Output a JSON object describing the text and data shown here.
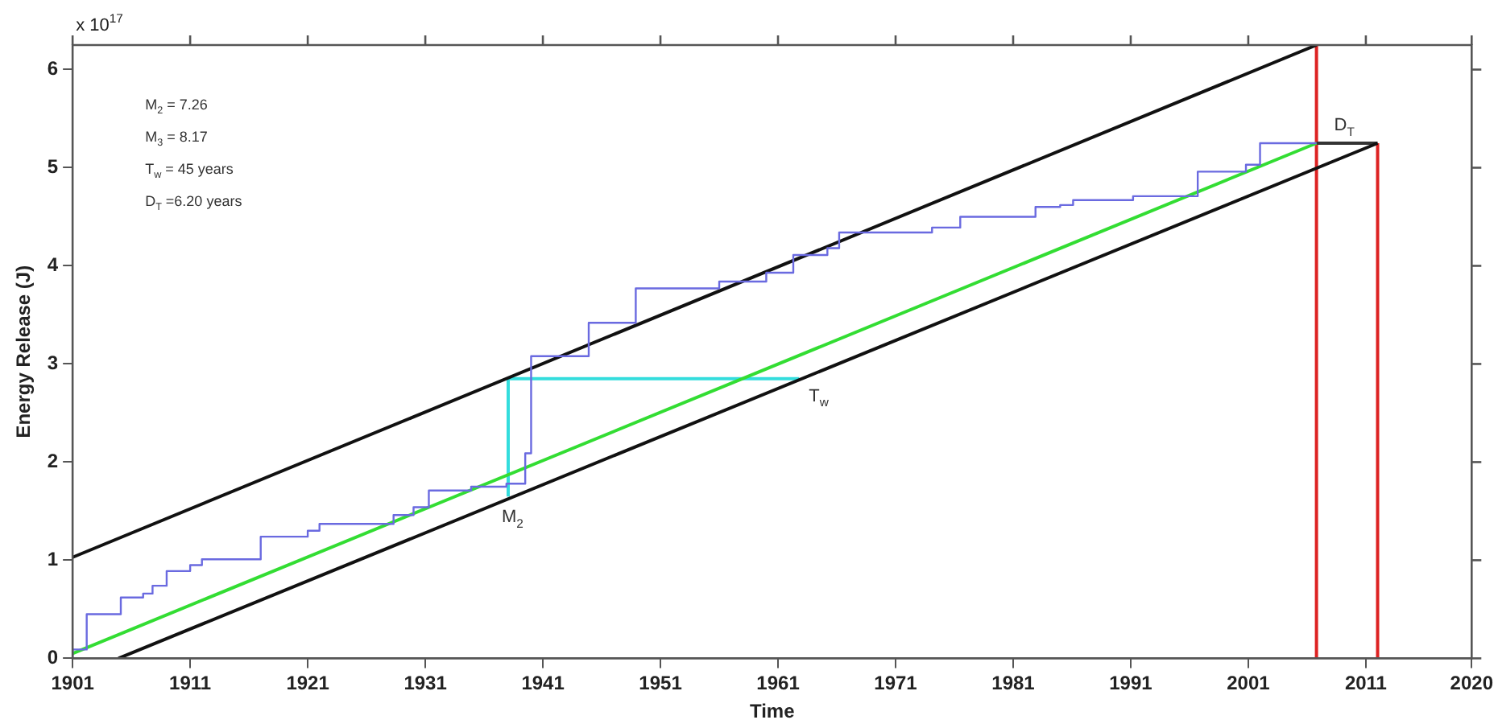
{
  "chart_data": {
    "type": "line",
    "xlabel": "Time",
    "ylabel": "Energy Release (J)",
    "xlim": [
      1901,
      2020
    ],
    "xticks": [
      1901,
      1911,
      1921,
      1931,
      1941,
      1951,
      1961,
      1971,
      1981,
      1991,
      2001,
      2011,
      2020
    ],
    "ylim": [
      0,
      6.25
    ],
    "yticks": [
      0,
      1,
      2,
      3,
      4,
      5,
      6
    ],
    "grid": false,
    "legend": false,
    "marker": "none",
    "line_style": "solid",
    "series": [
      {
        "type": "step",
        "color": "#6a6ae0",
        "x": [
          1901,
          1902.2,
          1905.1,
          1907,
          1907.8,
          1909,
          1911,
          1912,
          1917,
          1921,
          1922,
          1928.3,
          1930,
          1931.3,
          1934.9,
          1937.9,
          1939.5,
          1940,
          1944.9,
          1948.9,
          1956,
          1960,
          1962.3,
          1965.2,
          1966.2,
          1974.1,
          1976.5,
          1982.9,
          1985,
          1986.1,
          1991.2,
          1996.7,
          2000.8,
          2002,
          2004.9,
          2006.8
        ],
        "values": [
          0,
          0.09,
          0.45,
          0.62,
          0.66,
          0.74,
          0.89,
          0.95,
          1.01,
          1.24,
          1.3,
          1.37,
          1.46,
          1.54,
          1.71,
          1.75,
          1.78,
          2.09,
          3.08,
          3.42,
          3.77,
          3.84,
          3.93,
          4.11,
          4.18,
          4.34,
          4.39,
          4.5,
          4.6,
          4.62,
          4.67,
          4.71,
          4.96,
          5.03,
          5.25,
          5.25
        ]
      },
      {
        "type": "line",
        "color": "#33dd33",
        "x": [
          1901,
          2006.8
        ],
        "values": [
          0.05,
          5.25
        ]
      },
      {
        "type": "line",
        "color": "#111111",
        "x": [
          1901,
          2006.8
        ],
        "values": [
          1.03,
          6.25
        ]
      },
      {
        "type": "line",
        "color": "#111111",
        "x": [
          1904.9,
          2012
        ],
        "values": [
          0,
          5.25
        ]
      },
      {
        "type": "line",
        "color": "#33dddd",
        "x": [
          1938.05,
          1938.05,
          1962.8
        ],
        "values": [
          1.65,
          2.85,
          2.85
        ]
      },
      {
        "type": "line",
        "color": "#333333",
        "x": [
          2006.8,
          2012
        ],
        "values": [
          5.25,
          5.25
        ]
      },
      {
        "type": "line",
        "color": "#dd2222",
        "x": [
          2006.8,
          2006.8
        ],
        "values": [
          0,
          6.25
        ]
      },
      {
        "type": "line",
        "color": "#dd2222",
        "x": [
          2012,
          2012
        ],
        "values": [
          0,
          5.25
        ]
      }
    ],
    "annotations": [
      "x 10$^{17}$",
      "M$_{2}$ = 7.26",
      "M$_{3}$ = 8.17",
      "T$_{w}$ = 45 years",
      "D$_{T}$ =6.20 years",
      {
        "text": "M$_{2}$",
        "x": 1938.05,
        "y": 1.65
      },
      {
        "text": "T$_{w}$",
        "x": 1962.8,
        "y": 2.85
      },
      {
        "text": "D$_{T}$",
        "x": 2009.4,
        "y": 5.25
      }
    ]
  }
}
